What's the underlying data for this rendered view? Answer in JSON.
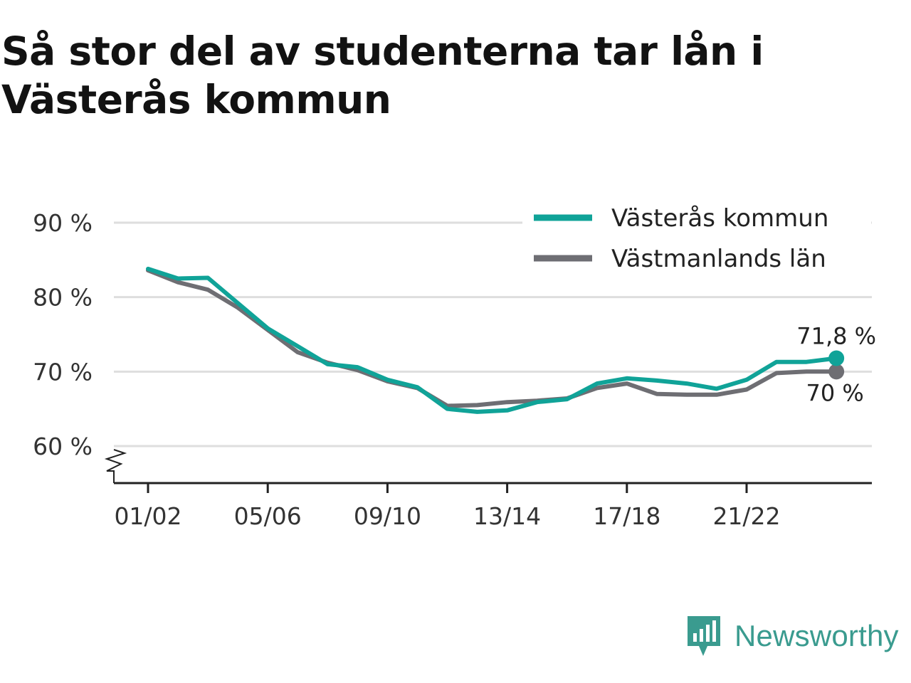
{
  "title": "Så stor del av studenterna tar lån i Västerås kommun",
  "colors": {
    "vasteras": "#10a398",
    "vastmanland": "#6e6e73",
    "grid": "#dedede",
    "axis": "#222222",
    "brand": "#3a9b8f"
  },
  "chart_data": {
    "type": "line",
    "title": "Så stor del av studenterna tar lån i Västerås kommun",
    "xlabel": "",
    "ylabel": "",
    "ylim": [
      55,
      90
    ],
    "yticks": [
      60,
      70,
      80,
      90
    ],
    "ytick_labels": [
      "60 %",
      "70 %",
      "80 %",
      "90 %"
    ],
    "xtick_labels": [
      "01/02",
      "05/06",
      "09/10",
      "13/14",
      "17/18",
      "21/22"
    ],
    "xtick_indices": [
      0,
      4,
      8,
      12,
      16,
      20
    ],
    "categories": [
      "01/02",
      "02/03",
      "03/04",
      "04/05",
      "05/06",
      "06/07",
      "07/08",
      "08/09",
      "09/10",
      "10/11",
      "11/12",
      "12/13",
      "13/14",
      "14/15",
      "15/16",
      "16/17",
      "17/18",
      "18/19",
      "19/20",
      "20/21",
      "21/22",
      "22/23",
      "23/24",
      "24/25"
    ],
    "grid": true,
    "legend": "top-right",
    "axis_break": true,
    "series": [
      {
        "name": "Västerås kommun",
        "color": "#10a398",
        "values": [
          83.8,
          82.5,
          82.6,
          79.2,
          75.8,
          73.4,
          71.0,
          70.6,
          68.9,
          67.9,
          65.0,
          64.6,
          64.8,
          65.9,
          66.3,
          68.4,
          69.1,
          68.8,
          68.4,
          67.7,
          68.9,
          71.3,
          71.3,
          71.8
        ],
        "end_label": "71,8 %"
      },
      {
        "name": "Västmanlands län",
        "color": "#6e6e73",
        "values": [
          83.6,
          82.0,
          81.0,
          78.6,
          75.6,
          72.6,
          71.2,
          70.2,
          68.7,
          67.8,
          65.4,
          65.5,
          65.9,
          66.1,
          66.4,
          67.8,
          68.4,
          67.0,
          66.9,
          66.9,
          67.6,
          69.8,
          70.0,
          70.0
        ],
        "end_label": "70 %"
      }
    ]
  },
  "brand": {
    "name": "Newsworthy",
    "icon": "newsworthy-logo-icon"
  }
}
